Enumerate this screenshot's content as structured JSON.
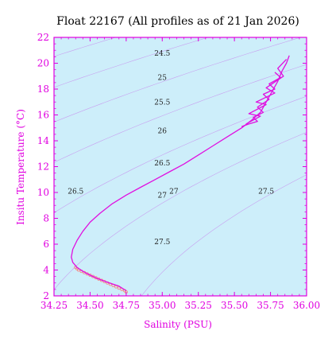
{
  "chart_data": {
    "type": "scatter",
    "title": "Float 22167  (All profiles as of 21 Jan 2026)",
    "xlabel": "Salinity (PSU)",
    "ylabel": "Insitu Temperature (°C)",
    "xlim": [
      34.25,
      36.0
    ],
    "ylim": [
      2,
      22
    ],
    "x_ticks": [
      "34.25",
      "34.50",
      "34.75",
      "35.00",
      "35.25",
      "35.50",
      "35.75",
      "36.00"
    ],
    "y_ticks": [
      "2",
      "4",
      "6",
      "8",
      "10",
      "12",
      "14",
      "16",
      "18",
      "20",
      "22"
    ],
    "grid": false,
    "colors": {
      "plot_background": "#cdeefa",
      "axes": "#e000e0",
      "profile_line": "#e010e0",
      "deep_points": "#f48a8a",
      "contours": "#c8a0f0"
    },
    "density_contours": [
      {
        "label": "24.5",
        "sal": 35.0,
        "temp": 20.6
      },
      {
        "label": "25",
        "sal": 35.0,
        "temp": 18.7
      },
      {
        "label": "25.5",
        "sal": 35.0,
        "temp": 16.8
      },
      {
        "label": "26",
        "sal": 35.0,
        "temp": 14.6
      },
      {
        "label": "26.5",
        "sal": 35.0,
        "temp": 12.1
      },
      {
        "label": "26.5",
        "sal": 34.4,
        "temp": 9.9
      },
      {
        "label": "27",
        "sal": 35.0,
        "temp": 9.6
      },
      {
        "label": "27",
        "sal": 35.08,
        "temp": 9.9
      },
      {
        "label": "27.5",
        "sal": 35.0,
        "temp": 6.0
      },
      {
        "label": "27.5",
        "sal": 35.72,
        "temp": 9.9
      }
    ],
    "series": [
      {
        "type": "line",
        "points": [
          [
            34.75,
            2.4
          ],
          [
            34.7,
            2.75
          ],
          [
            34.62,
            3.05
          ],
          [
            34.55,
            3.35
          ],
          [
            34.5,
            3.6
          ],
          [
            34.45,
            3.9
          ],
          [
            34.41,
            4.2
          ],
          [
            34.38,
            4.6
          ],
          [
            34.37,
            5.0
          ],
          [
            34.38,
            5.6
          ],
          [
            34.41,
            6.3
          ],
          [
            34.45,
            7.0
          ],
          [
            34.5,
            7.7
          ],
          [
            34.57,
            8.4
          ],
          [
            34.65,
            9.1
          ],
          [
            34.75,
            9.8
          ],
          [
            34.85,
            10.4
          ],
          [
            34.95,
            11.0
          ],
          [
            35.05,
            11.6
          ],
          [
            35.15,
            12.2
          ],
          [
            35.25,
            12.9
          ],
          [
            35.35,
            13.6
          ],
          [
            35.45,
            14.3
          ],
          [
            35.55,
            15.0
          ],
          [
            35.62,
            15.6
          ],
          [
            35.68,
            16.2
          ],
          [
            35.72,
            17.0
          ],
          [
            35.76,
            17.8
          ],
          [
            35.8,
            18.6
          ],
          [
            35.83,
            19.4
          ],
          [
            35.86,
            20.0
          ],
          [
            35.88,
            20.6
          ]
        ]
      },
      {
        "type": "line",
        "points": [
          [
            35.55,
            15.1
          ],
          [
            35.6,
            15.3
          ],
          [
            35.66,
            15.5
          ],
          [
            35.63,
            15.8
          ],
          [
            35.7,
            16.2
          ],
          [
            35.66,
            16.6
          ],
          [
            35.74,
            17.2
          ],
          [
            35.7,
            17.6
          ],
          [
            35.78,
            18.0
          ],
          [
            35.74,
            18.4
          ],
          [
            35.82,
            18.9
          ],
          [
            35.78,
            19.3
          ]
        ]
      },
      {
        "type": "line",
        "points": [
          [
            35.58,
            15.3
          ],
          [
            35.68,
            15.9
          ],
          [
            35.6,
            16.1
          ],
          [
            35.72,
            16.8
          ],
          [
            35.65,
            17.0
          ],
          [
            35.78,
            17.7
          ],
          [
            35.72,
            18.1
          ],
          [
            35.84,
            19.0
          ],
          [
            35.8,
            19.6
          ],
          [
            35.86,
            20.3
          ]
        ]
      },
      {
        "type": "scatter",
        "points": [
          [
            34.75,
            2.3
          ],
          [
            34.74,
            2.4
          ],
          [
            34.72,
            2.5
          ],
          [
            34.7,
            2.6
          ],
          [
            34.68,
            2.7
          ],
          [
            34.66,
            2.8
          ],
          [
            34.64,
            2.9
          ],
          [
            34.62,
            3.0
          ],
          [
            34.6,
            3.1
          ],
          [
            34.58,
            3.2
          ],
          [
            34.56,
            3.3
          ],
          [
            34.54,
            3.4
          ],
          [
            34.52,
            3.5
          ],
          [
            34.5,
            3.6
          ],
          [
            34.48,
            3.7
          ],
          [
            34.46,
            3.8
          ],
          [
            34.44,
            3.9
          ],
          [
            34.42,
            4.0
          ],
          [
            34.41,
            4.1
          ],
          [
            34.4,
            4.2
          ]
        ]
      }
    ]
  }
}
